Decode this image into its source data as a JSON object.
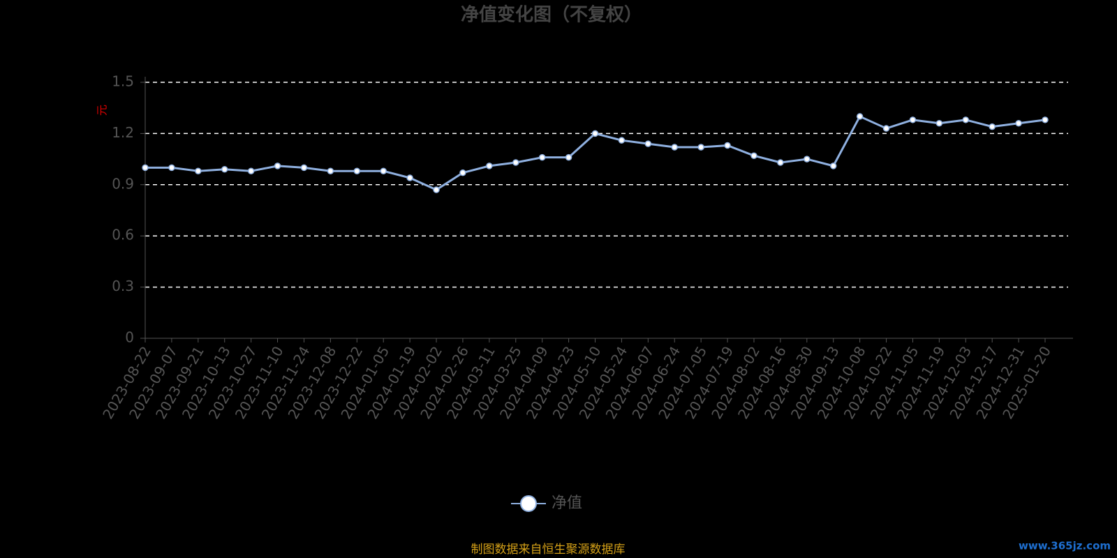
{
  "chart_data": {
    "type": "line",
    "title": "净值变化图（不复权）",
    "y_label": "元",
    "source": "制图数据来自恒生聚源数据库",
    "watermark": "www.365jz.com",
    "categories": [
      "2023-08-22",
      "2023-09-07",
      "2023-09-21",
      "2023-10-13",
      "2023-10-27",
      "2023-11-10",
      "2023-11-24",
      "2023-12-08",
      "2023-12-22",
      "2024-01-05",
      "2024-01-19",
      "2024-02-02",
      "2024-02-26",
      "2024-03-11",
      "2024-03-25",
      "2024-04-09",
      "2024-04-23",
      "2024-05-10",
      "2024-05-24",
      "2024-06-07",
      "2024-06-24",
      "2024-07-05",
      "2024-07-19",
      "2024-08-02",
      "2024-08-16",
      "2024-08-30",
      "2024-09-13",
      "2024-10-08",
      "2024-10-22",
      "2024-11-05",
      "2024-11-19",
      "2024-12-03",
      "2024-12-17",
      "2024-12-31",
      "2025-01-20"
    ],
    "series": [
      {
        "name": "净值",
        "color": "#8fb0e0",
        "values": [
          1.0,
          1.0,
          0.98,
          0.99,
          0.98,
          1.01,
          1.0,
          0.98,
          0.98,
          0.98,
          0.94,
          0.87,
          0.97,
          1.01,
          1.03,
          1.06,
          1.06,
          1.2,
          1.16,
          1.14,
          1.12,
          1.12,
          1.13,
          1.07,
          1.03,
          1.05,
          1.01,
          1.3,
          1.23,
          1.28,
          1.26,
          1.28,
          1.24,
          1.26,
          1.28
        ]
      }
    ],
    "ylim": [
      0,
      1.5
    ],
    "yticks": [
      0,
      0.3,
      0.6,
      0.9,
      1.2,
      1.5
    ],
    "grid": true
  }
}
